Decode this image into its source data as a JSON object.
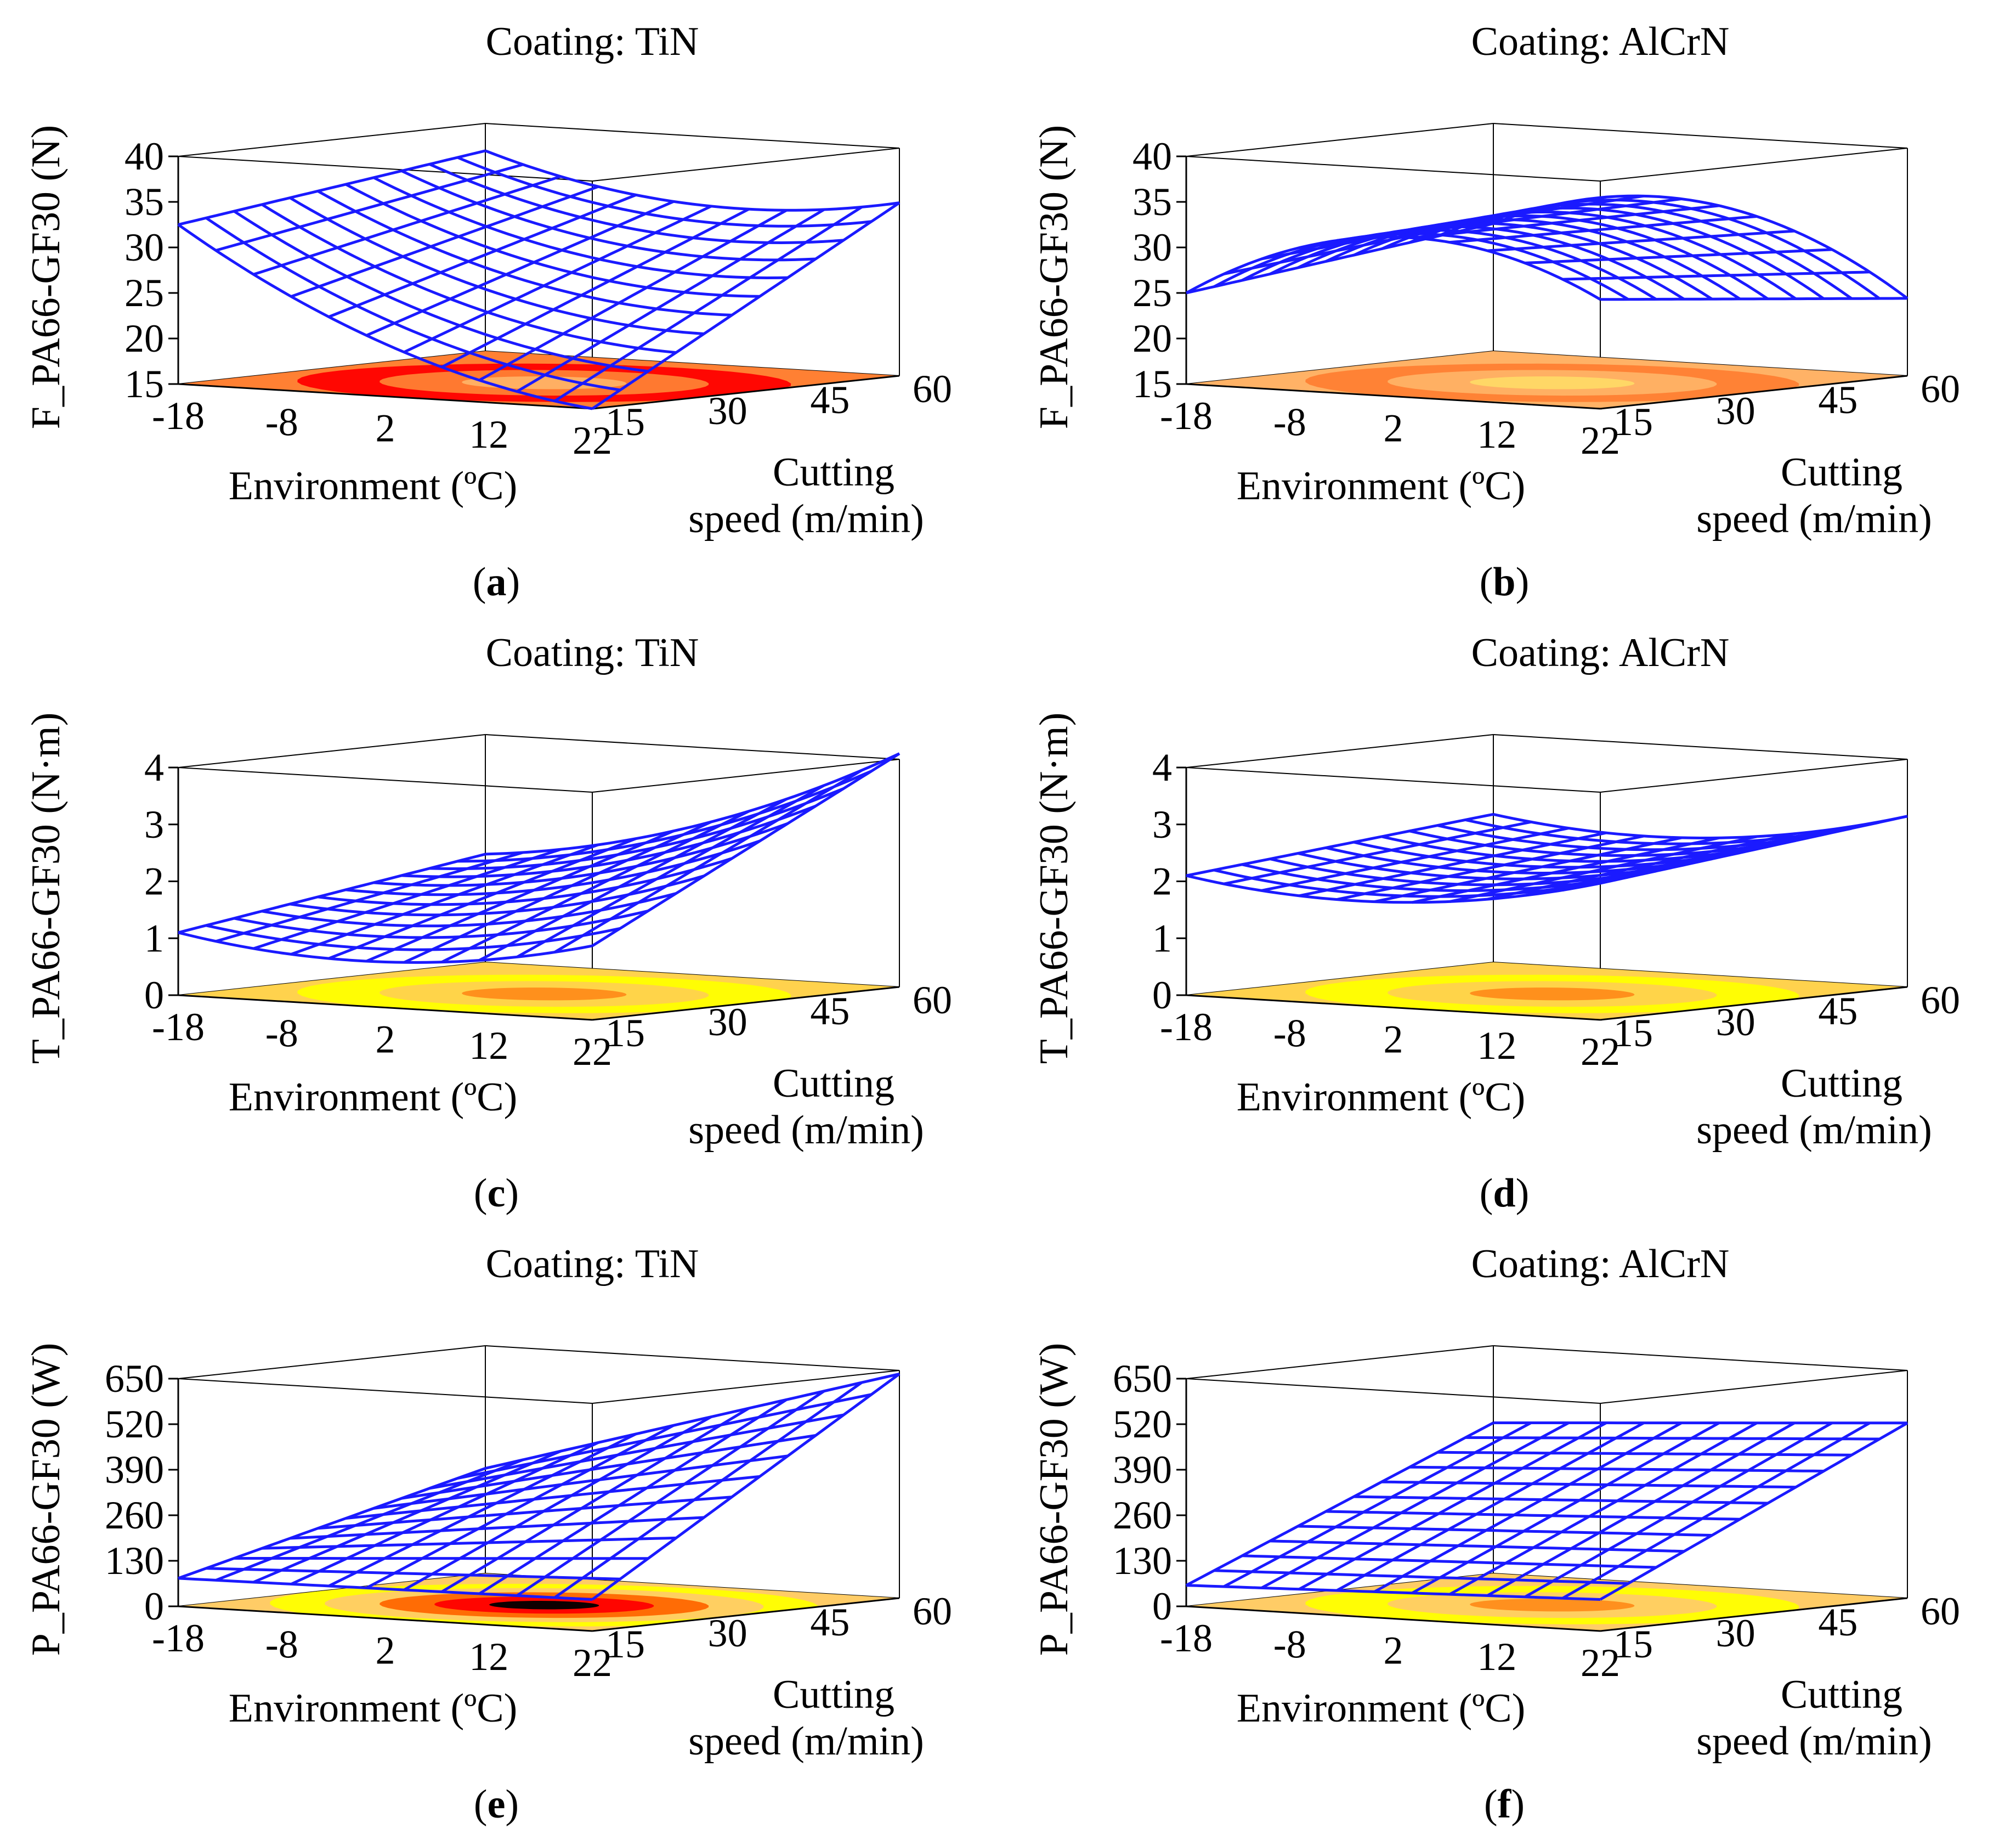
{
  "chart_data": [
    {
      "type": "surface3d",
      "panel": "a",
      "title": "Coating: TiN",
      "zlabel": "F_PA66-GF30 (N)",
      "xlabel": "Environment (ºC)",
      "ylabel_line1": "Cutting",
      "ylabel_line2": "speed (m/min)",
      "x_ticks": [
        "-18",
        "-8",
        "2",
        "12",
        "22"
      ],
      "y_ticks": [
        "15",
        "30",
        "45",
        "60"
      ],
      "z_ticks": [
        "15",
        "20",
        "25",
        "30",
        "35",
        "40"
      ],
      "x_range": [
        -18,
        22
      ],
      "y_range": [
        15,
        60
      ],
      "z_range": [
        15,
        40
      ],
      "z_corners": {
        "xmin_ymin": 32.5,
        "xmax_ymin": 15.0,
        "xmin_ymax": 37.0,
        "xmax_ymax": 34.0
      },
      "z_curvature": -3.0,
      "contour_levels": [
        "#ff0000",
        "#ff8033",
        "#ffb266"
      ],
      "caption_label": "a"
    },
    {
      "type": "surface3d",
      "panel": "b",
      "title": "Coating: AlCrN",
      "zlabel": "F_PA66-GF30 (N)",
      "xlabel": "Environment (ºC)",
      "ylabel_line1": "Cutting",
      "ylabel_line2": "speed (m/min)",
      "x_ticks": [
        "-18",
        "-8",
        "2",
        "12",
        "22"
      ],
      "y_ticks": [
        "15",
        "30",
        "45",
        "60"
      ],
      "z_ticks": [
        "15",
        "20",
        "25",
        "30",
        "35",
        "40"
      ],
      "x_range": [
        -18,
        22
      ],
      "y_range": [
        15,
        60
      ],
      "z_range": [
        15,
        40
      ],
      "z_corners": {
        "xmin_ymin": 25.0,
        "xmax_ymin": 27.0,
        "xmin_ymax": 29.0,
        "xmax_ymax": 23.5
      },
      "z_curvature": 6.5,
      "contour_levels": [
        "#ff8033",
        "#ffb266",
        "#ffd966"
      ],
      "caption_label": "b"
    },
    {
      "type": "surface3d",
      "panel": "c",
      "title": "Coating: TiN",
      "zlabel": "T_PA66-GF30 (N·m)",
      "xlabel": "Environment (ºC)",
      "ylabel_line1": "Cutting",
      "ylabel_line2": "speed (m/min)",
      "x_ticks": [
        "-18",
        "-8",
        "2",
        "12",
        "22"
      ],
      "y_ticks": [
        "15",
        "30",
        "45",
        "60"
      ],
      "z_ticks": [
        "0",
        "1",
        "2",
        "3",
        "4"
      ],
      "x_range": [
        -18,
        22
      ],
      "y_range": [
        15,
        60
      ],
      "z_range": [
        0,
        4
      ],
      "z_corners": {
        "xmin_ymin": 1.1,
        "xmax_ymin": 1.3,
        "xmin_ymax": 1.9,
        "xmax_ymax": 4.1
      },
      "z_curvature": -0.4,
      "contour_levels": [
        "#ffff00",
        "#ffd24d",
        "#ff8c1a"
      ],
      "caption_label": "c"
    },
    {
      "type": "surface3d",
      "panel": "d",
      "title": "Coating: AlCrN",
      "zlabel": "T_PA66-GF30 (N·m)",
      "xlabel": "Environment (ºC)",
      "ylabel_line1": "Cutting",
      "ylabel_line2": "speed (m/min)",
      "x_ticks": [
        "-18",
        "-8",
        "2",
        "12",
        "22"
      ],
      "y_ticks": [
        "15",
        "30",
        "45",
        "60"
      ],
      "z_ticks": [
        "0",
        "1",
        "2",
        "3",
        "4"
      ],
      "x_range": [
        -18,
        22
      ],
      "y_range": [
        15,
        60
      ],
      "z_range": [
        0,
        4
      ],
      "z_corners": {
        "xmin_ymin": 2.1,
        "xmax_ymin": 2.4,
        "xmin_ymax": 2.6,
        "xmax_ymax": 3.0
      },
      "z_curvature": -0.4,
      "contour_levels": [
        "#ffff00",
        "#ffd24d",
        "#ff8c1a"
      ],
      "caption_label": "d"
    },
    {
      "type": "surface3d",
      "panel": "e",
      "title": "Coating: TiN",
      "zlabel": "P_PA66-GF30 (W)",
      "xlabel": "Environment (ºC)",
      "ylabel_line1": "Cutting",
      "ylabel_line2": "speed (m/min)",
      "x_ticks": [
        "-18",
        "-8",
        "2",
        "12",
        "22"
      ],
      "y_ticks": [
        "15",
        "30",
        "45",
        "60"
      ],
      "z_ticks": [
        "0",
        "130",
        "260",
        "390",
        "520",
        "650"
      ],
      "x_range": [
        -18,
        22
      ],
      "y_range": [
        15,
        60
      ],
      "z_range": [
        0,
        650
      ],
      "z_corners": {
        "xmin_ymin": 80,
        "xmax_ymin": 90,
        "xmin_ymax": 300,
        "xmax_ymax": 640
      },
      "z_curvature": 0,
      "contour_levels": [
        "#ffff00",
        "#ffcc66",
        "#ff6600",
        "#ff0000",
        "#000000"
      ],
      "caption_label": "e"
    },
    {
      "type": "surface3d",
      "panel": "f",
      "title": "Coating: AlCrN",
      "zlabel": "P_PA66-GF30 (W)",
      "xlabel": "Environment (ºC)",
      "ylabel_line1": "Cutting",
      "ylabel_line2": "speed (m/min)",
      "x_ticks": [
        "-18",
        "-8",
        "2",
        "12",
        "22"
      ],
      "y_ticks": [
        "15",
        "30",
        "45",
        "60"
      ],
      "z_ticks": [
        "0",
        "130",
        "260",
        "390",
        "520",
        "650"
      ],
      "x_range": [
        -18,
        22
      ],
      "y_range": [
        15,
        60
      ],
      "z_range": [
        0,
        650
      ],
      "z_corners": {
        "xmin_ymin": 60,
        "xmax_ymin": 90,
        "xmin_ymax": 430,
        "xmax_ymax": 500
      },
      "z_curvature": 0,
      "contour_levels": [
        "#ffff00",
        "#ffcc66",
        "#ff8c1a"
      ],
      "caption_label": "f"
    }
  ]
}
